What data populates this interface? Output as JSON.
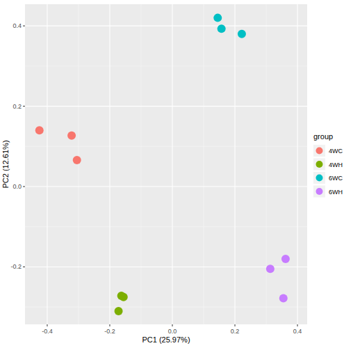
{
  "chart_data": {
    "type": "scatter",
    "x_label": "PC1 (25.97%)",
    "y_label": "PC2 (12.61%)",
    "legend_title": "group",
    "legend": "right",
    "grid": true,
    "marker": "circle",
    "xlim": [
      -0.471,
      0.431
    ],
    "ylim": [
      -0.343,
      0.454
    ],
    "xticks": [
      {
        "value": -0.4,
        "label": "-0.4"
      },
      {
        "value": -0.2,
        "label": "-0.2"
      },
      {
        "value": 0,
        "label": "0.0"
      },
      {
        "value": 0.2,
        "label": "0.2"
      },
      {
        "value": 0.4,
        "label": "0.4"
      }
    ],
    "yticks": [
      {
        "value": -0.2,
        "label": "-0.2"
      },
      {
        "value": 0,
        "label": "0.0"
      },
      {
        "value": 0.2,
        "label": "0.2"
      },
      {
        "value": 0.4,
        "label": "0.4"
      }
    ],
    "series": [
      {
        "name": "4WC",
        "color": "#F8766D",
        "x": [
          -0.425,
          -0.322,
          -0.305
        ],
        "values": [
          0.14,
          0.127,
          0.066
        ]
      },
      {
        "name": "4WH",
        "color": "#7CAE00",
        "x": [
          -0.163,
          -0.156,
          -0.172
        ],
        "values": [
          -0.272,
          -0.275,
          -0.31
        ]
      },
      {
        "name": "6WC",
        "color": "#00BFC4",
        "x": [
          0.145,
          0.157,
          0.222
        ],
        "values": [
          0.42,
          0.393,
          0.38
        ]
      },
      {
        "name": "6WH",
        "color": "#C77CFF",
        "x": [
          0.313,
          0.362,
          0.355
        ],
        "values": [
          -0.205,
          -0.18,
          -0.278
        ]
      }
    ]
  }
}
